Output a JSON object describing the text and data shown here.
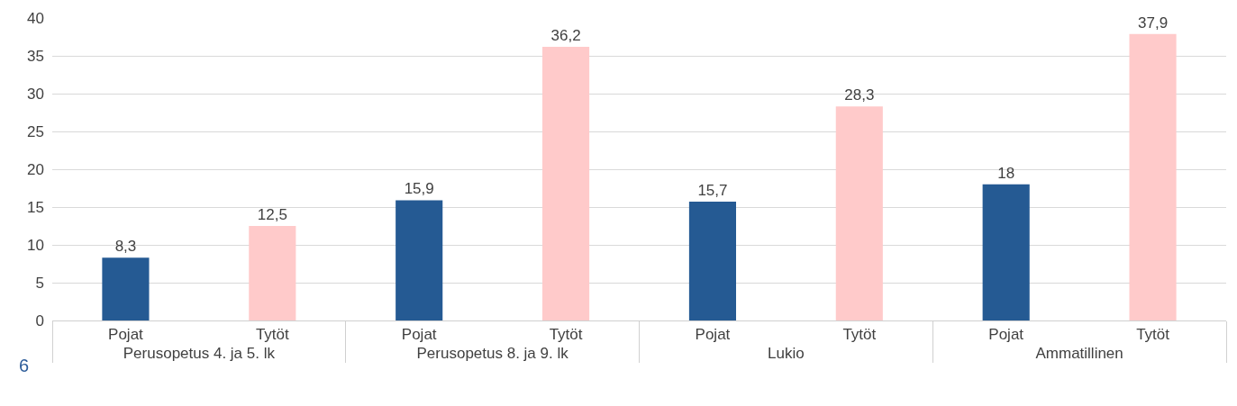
{
  "chart_data": {
    "type": "bar",
    "categories": [
      "Perusopetus 4. ja 5. lk",
      "Perusopetus 8. ja 9. lk",
      "Lukio",
      "Ammatillinen"
    ],
    "series": [
      {
        "name": "Pojat",
        "color": "#255a93",
        "values": [
          8.3,
          15.9,
          15.7,
          18
        ],
        "value_labels": [
          "8,3",
          "15,9",
          "15,7",
          "18"
        ]
      },
      {
        "name": "Tytöt",
        "color": "#ffcaca",
        "values": [
          12.5,
          36.2,
          28.3,
          37.9
        ],
        "value_labels": [
          "12,5",
          "36,2",
          "28,3",
          "37,9"
        ]
      }
    ],
    "ylim": [
      0,
      40
    ],
    "yticks": [
      0,
      5,
      10,
      15,
      20,
      25,
      30,
      35,
      40
    ],
    "grid": "y",
    "legend": false,
    "annotations": [
      "6"
    ]
  }
}
